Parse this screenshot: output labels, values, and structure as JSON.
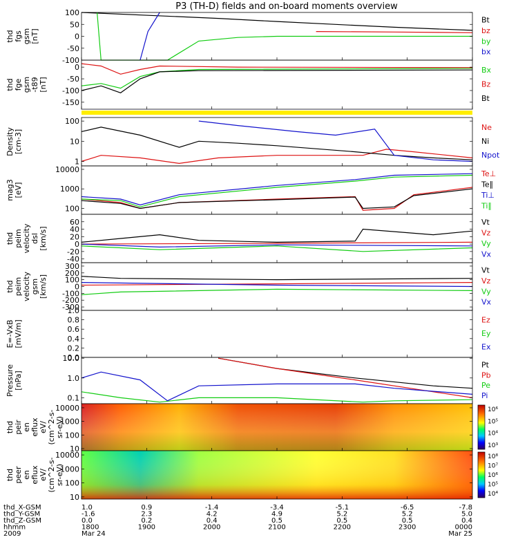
{
  "title": "P3 (TH-D) fields and on-board moments overview",
  "colors": {
    "black": "#000000",
    "red": "#dd1111",
    "green": "#11cc11",
    "blue": "#1111cc",
    "yellow": "#ffee00"
  },
  "chart_data": [
    {
      "type": "line",
      "ylabel": [
        "thd",
        "fgs",
        "gsm",
        "[nT]"
      ],
      "ytick_labels": [
        "100",
        "50",
        "0",
        "-50",
        "-100"
      ],
      "ylim": [
        -100,
        100
      ],
      "legend": [
        {
          "name": "Bt",
          "color": "black"
        },
        {
          "name": "bz",
          "color": "red"
        },
        {
          "name": "by",
          "color": "green"
        },
        {
          "name": "bx",
          "color": "blue"
        }
      ],
      "series": [
        {
          "name": "Bt",
          "color": "black",
          "x": [
            0,
            0.35,
            0.5,
            0.65,
            0.8,
            1.0
          ],
          "y": [
            100,
            75,
            62,
            50,
            38,
            25
          ]
        },
        {
          "name": "bz",
          "color": "red",
          "x": [
            0.6,
            0.8,
            1.0
          ],
          "y": [
            20,
            18,
            15
          ]
        },
        {
          "name": "by",
          "color": "green",
          "x": [
            0.04,
            0.05,
            0.22,
            0.3,
            0.4,
            0.5,
            1.0
          ],
          "y": [
            100,
            -100,
            -100,
            -20,
            -5,
            0,
            0
          ]
        },
        {
          "name": "bx",
          "color": "blue",
          "x": [
            0.15,
            0.17,
            0.2
          ],
          "y": [
            -100,
            20,
            100
          ]
        }
      ]
    },
    {
      "type": "line",
      "ylabel": [
        "thd",
        "fge",
        "gsm",
        "-t89",
        "[nT]"
      ],
      "ytick_labels": [
        "0",
        "-50",
        "-100",
        "-150"
      ],
      "ylim": [
        -180,
        30
      ],
      "legend": [
        {
          "name": "Bx",
          "color": "green"
        },
        {
          "name": "Bz",
          "color": "red"
        },
        {
          "name": "Bt",
          "color": "black"
        }
      ],
      "series": [
        {
          "name": "Bx",
          "color": "green",
          "x": [
            0,
            0.05,
            0.1,
            0.15,
            0.2,
            0.3,
            1.0
          ],
          "y": [
            -80,
            -70,
            -90,
            -40,
            -20,
            -10,
            -5
          ]
        },
        {
          "name": "Bz",
          "color": "red",
          "x": [
            0,
            0.05,
            0.1,
            0.15,
            0.2,
            0.4,
            1.0
          ],
          "y": [
            15,
            5,
            -30,
            -10,
            5,
            0,
            -2
          ]
        },
        {
          "name": "Bt",
          "color": "black",
          "x": [
            0,
            0.05,
            0.1,
            0.15,
            0.2,
            0.3,
            1.0
          ],
          "y": [
            -100,
            -80,
            -110,
            -50,
            -20,
            -15,
            -12
          ]
        }
      ]
    },
    {
      "type": "line",
      "ylabel": [
        "Density",
        "[cm-3]"
      ],
      "ytick_labels": [
        "100",
        "10",
        "1"
      ],
      "ylim": [
        0.6,
        150
      ],
      "scale": "log",
      "legend": [
        {
          "name": "Ne",
          "color": "red"
        },
        {
          "name": "Ni",
          "color": "black"
        },
        {
          "name": "Npot",
          "color": "blue"
        }
      ],
      "series": [
        {
          "name": "Ne",
          "color": "red",
          "x": [
            0,
            0.05,
            0.15,
            0.25,
            0.35,
            0.5,
            0.72,
            0.78,
            0.85,
            1.0
          ],
          "y": [
            1,
            2,
            1.5,
            0.8,
            1.5,
            2,
            2,
            4,
            3,
            1.5
          ]
        },
        {
          "name": "Ni",
          "color": "black",
          "x": [
            0,
            0.05,
            0.15,
            0.25,
            0.3,
            0.4,
            0.5,
            0.7,
            0.8,
            0.9,
            1.0
          ],
          "y": [
            30,
            50,
            20,
            5,
            10,
            8,
            6,
            3,
            2,
            1.5,
            1.2
          ]
        },
        {
          "name": "Npot",
          "color": "blue",
          "x": [
            0.3,
            0.4,
            0.55,
            0.65,
            0.75,
            0.8,
            0.9,
            1.0
          ],
          "y": [
            100,
            60,
            30,
            20,
            40,
            2,
            1.2,
            1
          ]
        }
      ]
    },
    {
      "type": "line",
      "ylabel": [
        "mag3",
        "[eV]"
      ],
      "ytick_labels": [
        "10000",
        "1000",
        "100"
      ],
      "ylim": [
        50,
        15000
      ],
      "scale": "log",
      "legend": [
        {
          "name": "Te⊥",
          "color": "red"
        },
        {
          "name": "Te∥",
          "color": "black"
        },
        {
          "name": "Ti⊥",
          "color": "blue"
        },
        {
          "name": "Ti∥",
          "color": "green"
        }
      ],
      "series": [
        {
          "name": "Te⊥",
          "color": "red",
          "x": [
            0,
            0.1,
            0.15,
            0.25,
            0.5,
            0.7,
            0.72,
            0.8,
            0.85,
            1.0
          ],
          "y": [
            300,
            200,
            100,
            200,
            300,
            400,
            80,
            100,
            500,
            1200
          ]
        },
        {
          "name": "Te∥",
          "color": "black",
          "x": [
            0,
            0.1,
            0.15,
            0.25,
            0.5,
            0.7,
            0.72,
            0.8,
            0.85,
            1.0
          ],
          "y": [
            250,
            180,
            100,
            200,
            280,
            380,
            100,
            120,
            450,
            1000
          ]
        },
        {
          "name": "Ti⊥",
          "color": "blue",
          "x": [
            0,
            0.1,
            0.15,
            0.25,
            0.5,
            0.7,
            0.8,
            1.0
          ],
          "y": [
            400,
            300,
            150,
            500,
            1500,
            3000,
            5000,
            6000
          ]
        },
        {
          "name": "Ti∥",
          "color": "green",
          "x": [
            0,
            0.1,
            0.15,
            0.25,
            0.5,
            0.7,
            0.8,
            1.0
          ],
          "y": [
            300,
            250,
            120,
            400,
            1200,
            2500,
            4000,
            5000
          ]
        }
      ]
    },
    {
      "type": "line",
      "ylabel": [
        "thd",
        "peim",
        "velocity",
        "dsl",
        "[km/s]"
      ],
      "ytick_labels": [
        "60",
        "40",
        "20",
        "0",
        "-20",
        "-40"
      ],
      "ylim": [
        -50,
        80
      ],
      "legend": [
        {
          "name": "Vt",
          "color": "black"
        },
        {
          "name": "Vz",
          "color": "red"
        },
        {
          "name": "Vy",
          "color": "green"
        },
        {
          "name": "Vx",
          "color": "blue"
        }
      ],
      "series": [
        {
          "name": "Vt",
          "color": "black",
          "x": [
            0,
            0.1,
            0.2,
            0.3,
            0.5,
            0.7,
            0.72,
            0.9,
            1.0
          ],
          "y": [
            5,
            15,
            25,
            10,
            5,
            8,
            40,
            25,
            35
          ]
        },
        {
          "name": "Vz",
          "color": "red",
          "x": [
            0,
            0.5,
            1.0
          ],
          "y": [
            0,
            2,
            5
          ]
        },
        {
          "name": "Vy",
          "color": "green",
          "x": [
            0,
            0.2,
            0.5,
            0.72,
            1.0
          ],
          "y": [
            -5,
            -15,
            -5,
            -20,
            -10
          ]
        },
        {
          "name": "Vx",
          "color": "blue",
          "x": [
            0,
            0.2,
            0.5,
            1.0
          ],
          "y": [
            0,
            -8,
            -2,
            -5
          ]
        }
      ]
    },
    {
      "type": "line",
      "ylabel": [
        "thd",
        "peim",
        "velocity",
        "gsm",
        "[km/s]"
      ],
      "ytick_labels": [
        "300",
        "200",
        "100",
        "0",
        "-100",
        "-200",
        "-300"
      ],
      "ylim": [
        -350,
        350
      ],
      "legend": [
        {
          "name": "Vt",
          "color": "black"
        },
        {
          "name": "Vz",
          "color": "red"
        },
        {
          "name": "Vy",
          "color": "green"
        },
        {
          "name": "Vx",
          "color": "blue"
        }
      ],
      "series": [
        {
          "name": "Vt",
          "color": "black",
          "x": [
            0,
            0.1,
            0.5,
            1.0
          ],
          "y": [
            150,
            120,
            100,
            120
          ]
        },
        {
          "name": "Vz",
          "color": "red",
          "x": [
            0,
            0.5,
            1.0
          ],
          "y": [
            20,
            40,
            60
          ]
        },
        {
          "name": "Vy",
          "color": "green",
          "x": [
            0,
            0.1,
            0.5,
            1.0
          ],
          "y": [
            -120,
            -80,
            -40,
            -60
          ]
        },
        {
          "name": "Vx",
          "color": "blue",
          "x": [
            0,
            0.5,
            1.0
          ],
          "y": [
            60,
            20,
            0
          ]
        }
      ]
    },
    {
      "type": "line",
      "ylabel": [
        "E=-VxB",
        "[mV/m]"
      ],
      "ytick_labels": [
        "1.0",
        "0.8",
        "0.6",
        "0.4",
        "0.2",
        "0.0"
      ],
      "ylim": [
        0,
        1
      ],
      "legend": [
        {
          "name": "Ez",
          "color": "red"
        },
        {
          "name": "Ey",
          "color": "green"
        },
        {
          "name": "Ex",
          "color": "blue"
        }
      ],
      "series": []
    },
    {
      "type": "line",
      "ylabel": [
        "Pressure",
        "[nPa]"
      ],
      "ytick_labels": [
        "10.0",
        "1.0",
        "0.1"
      ],
      "ylim": [
        0.05,
        11
      ],
      "scale": "log",
      "legend": [
        {
          "name": "Pt",
          "color": "black"
        },
        {
          "name": "Pb",
          "color": "red"
        },
        {
          "name": "Pe",
          "color": "green"
        },
        {
          "name": "Pi",
          "color": "blue"
        }
      ],
      "series": [
        {
          "name": "Pt",
          "color": "black",
          "x": [
            0.35,
            0.5,
            0.7,
            0.9,
            1.0
          ],
          "y": [
            10,
            3,
            1,
            0.4,
            0.3
          ]
        },
        {
          "name": "Pb",
          "color": "red",
          "x": [
            0.35,
            0.5,
            0.7,
            0.9,
            1.0
          ],
          "y": [
            10,
            3,
            0.8,
            0.2,
            0.1
          ]
        },
        {
          "name": "Pe",
          "color": "green",
          "x": [
            0,
            0.1,
            0.2,
            0.3,
            0.5,
            0.72,
            0.8,
            1.0
          ],
          "y": [
            0.2,
            0.1,
            0.06,
            0.1,
            0.1,
            0.06,
            0.07,
            0.08
          ]
        },
        {
          "name": "Pi",
          "color": "blue",
          "x": [
            0,
            0.05,
            0.15,
            0.22,
            0.3,
            0.5,
            0.7,
            0.8,
            1.0
          ],
          "y": [
            1,
            2,
            0.8,
            0.07,
            0.4,
            0.5,
            0.5,
            0.3,
            0.15
          ]
        }
      ]
    },
    {
      "type": "heatmap",
      "ylabel": [
        "thd",
        "peir",
        "en",
        "eflux",
        "eV/",
        "(cm^2-s-",
        "sr-eV)"
      ],
      "ytick_labels": [
        "10000",
        "1000",
        "100",
        "10"
      ],
      "ylim": [
        7,
        20000
      ],
      "scale": "log",
      "colorbar_labels": [
        "10⁶",
        "10⁵",
        "10⁴",
        "10³"
      ],
      "colorbar_range": [
        1000,
        1000000
      ]
    },
    {
      "type": "heatmap",
      "ylabel": [
        "thd",
        "peer",
        "en",
        "eflux",
        "eV/",
        "(cm^2-s-",
        "sr-eV)"
      ],
      "ytick_labels": [
        "10000",
        "1000",
        "100",
        "10"
      ],
      "ylim": [
        7,
        20000
      ],
      "scale": "log",
      "colorbar_labels": [
        "10⁸",
        "10⁷",
        "10⁶",
        "10⁵",
        "10⁴"
      ],
      "colorbar_range": [
        10000,
        100000000
      ]
    }
  ],
  "ephemeris": {
    "rows": [
      {
        "label": "thd_X-GSM",
        "values": [
          "1.0",
          "0.9",
          "-1.4",
          "-3.4",
          "-5.1",
          "-6.5",
          "-7.8"
        ]
      },
      {
        "label": "thd_Y-GSM",
        "values": [
          "-1.6",
          "2.3",
          "4.2",
          "4.9",
          "5.2",
          "5.2",
          "5.0"
        ]
      },
      {
        "label": "thd_Z-GSM",
        "values": [
          "0.0",
          "0.2",
          "0.4",
          "0.5",
          "0.5",
          "0.5",
          "0.4"
        ]
      },
      {
        "label": "hhmm",
        "values": [
          "1800",
          "1900",
          "2000",
          "2100",
          "2200",
          "2300",
          "0000"
        ]
      },
      {
        "label": "2009",
        "values": [
          "Mar 24",
          "",
          "",
          "",
          "",
          "",
          "Mar 25"
        ]
      }
    ]
  }
}
